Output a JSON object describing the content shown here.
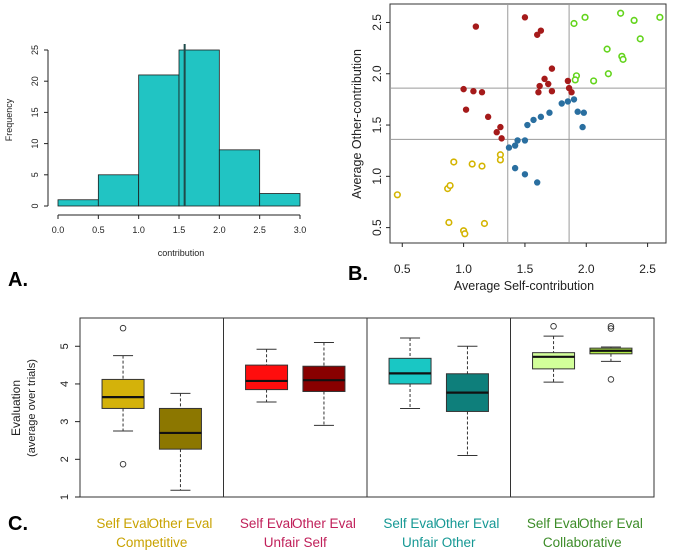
{
  "colors": {
    "hist_fill": "#21c4c3",
    "yellow": "#d4b400",
    "red": "#a51a1a",
    "blue": "#2a6fa0",
    "green": "#63d41c",
    "competitive": "#c8a200",
    "unfair_self": "#c0205a",
    "unfair_other": "#159894",
    "collaborative": "#3c8c28"
  },
  "chart_data": [
    {
      "id": "A",
      "panel_label": "A.",
      "type": "bar",
      "title": "",
      "xlabel": "contribution",
      "ylabel": "Frequency",
      "bins": [
        [
          0.0,
          0.5
        ],
        [
          0.5,
          1.0
        ],
        [
          1.0,
          1.5
        ],
        [
          1.5,
          2.0
        ],
        [
          2.0,
          2.5
        ],
        [
          2.5,
          3.0
        ]
      ],
      "values": [
        1,
        5,
        21,
        25,
        9,
        2
      ],
      "vline": 1.57,
      "xlim": [
        0,
        3
      ],
      "ylim": [
        0,
        25
      ],
      "xticks": [
        "0.0",
        "0.5",
        "1.0",
        "1.5",
        "2.0",
        "2.5",
        "3.0"
      ],
      "yticks": [
        "0",
        "5",
        "10",
        "15",
        "20",
        "25"
      ]
    },
    {
      "id": "B",
      "panel_label": "B.",
      "type": "scatter",
      "xlabel": "Average Self-contribution",
      "ylabel": "Average Other-contribution",
      "xlim": [
        0.4,
        2.65
      ],
      "ylim": [
        0.35,
        2.68
      ],
      "xticks": [
        "0.5",
        "1.0",
        "1.5",
        "2.0",
        "2.5"
      ],
      "yticks": [
        "0.5",
        "1.0",
        "1.5",
        "2.0",
        "2.5"
      ],
      "vlines": [
        1.36,
        1.86
      ],
      "hlines": [
        1.36,
        1.86
      ],
      "series": [
        {
          "name": "Competitive",
          "color_key": "yellow",
          "points": [
            [
              0.46,
              0.82
            ],
            [
              0.87,
              0.88
            ],
            [
              0.89,
              0.91
            ],
            [
              0.92,
              1.14
            ],
            [
              0.88,
              0.55
            ],
            [
              1.0,
              0.47
            ],
            [
              1.01,
              0.44
            ],
            [
              1.07,
              1.12
            ],
            [
              1.15,
              1.1
            ],
            [
              1.17,
              0.54
            ],
            [
              1.3,
              1.21
            ],
            [
              1.3,
              1.16
            ]
          ]
        },
        {
          "name": "Unfair Self",
          "color_key": "red",
          "points": [
            [
              1.1,
              2.46
            ],
            [
              1.0,
              1.85
            ],
            [
              1.08,
              1.83
            ],
            [
              1.15,
              1.82
            ],
            [
              1.02,
              1.65
            ],
            [
              1.2,
              1.58
            ],
            [
              1.27,
              1.43
            ],
            [
              1.3,
              1.48
            ],
            [
              1.31,
              1.37
            ],
            [
              1.5,
              2.55
            ],
            [
              1.6,
              2.38
            ],
            [
              1.63,
              2.42
            ],
            [
              1.72,
              2.05
            ],
            [
              1.66,
              1.95
            ],
            [
              1.62,
              1.88
            ],
            [
              1.69,
              1.9
            ],
            [
              1.61,
              1.82
            ],
            [
              1.72,
              1.83
            ],
            [
              1.85,
              1.93
            ],
            [
              1.86,
              1.86
            ],
            [
              1.88,
              1.82
            ]
          ]
        },
        {
          "name": "Unfair Other",
          "color_key": "blue",
          "points": [
            [
              1.37,
              1.28
            ],
            [
              1.42,
              1.3
            ],
            [
              1.44,
              1.35
            ],
            [
              1.5,
              1.35
            ],
            [
              1.42,
              1.08
            ],
            [
              1.5,
              1.02
            ],
            [
              1.6,
              0.94
            ],
            [
              1.52,
              1.5
            ],
            [
              1.57,
              1.55
            ],
            [
              1.63,
              1.58
            ],
            [
              1.7,
              1.62
            ],
            [
              1.8,
              1.71
            ],
            [
              1.85,
              1.73
            ],
            [
              1.9,
              1.75
            ],
            [
              1.93,
              1.63
            ],
            [
              1.98,
              1.62
            ],
            [
              1.97,
              1.48
            ]
          ]
        },
        {
          "name": "Collaborative",
          "color_key": "green",
          "points": [
            [
              1.9,
              2.49
            ],
            [
              1.99,
              2.55
            ],
            [
              2.28,
              2.59
            ],
            [
              2.39,
              2.52
            ],
            [
              2.6,
              2.55
            ],
            [
              2.17,
              2.24
            ],
            [
              2.29,
              2.17
            ],
            [
              2.3,
              2.14
            ],
            [
              2.44,
              2.34
            ],
            [
              1.92,
              1.98
            ],
            [
              1.91,
              1.94
            ],
            [
              2.06,
              1.93
            ],
            [
              2.18,
              2.0
            ]
          ]
        }
      ]
    },
    {
      "id": "C",
      "panel_label": "C.",
      "type": "boxplot",
      "ylabel_line1": "Evaluation",
      "ylabel_line2": "(average over trials)",
      "ylim": [
        1,
        5.75
      ],
      "yticks": [
        "1",
        "2",
        "3",
        "4",
        "5"
      ],
      "groups": [
        {
          "name": "Competitive",
          "color_key": "competitive",
          "boxes": [
            {
              "label": "Self Eval",
              "fill": "#d4b20a",
              "min": 2.75,
              "q1": 3.35,
              "median": 3.65,
              "q3": 4.12,
              "max": 4.75,
              "outliers": [
                5.48,
                1.87
              ]
            },
            {
              "label": "Other Eval",
              "fill": "#8c7700",
              "min": 1.18,
              "q1": 2.27,
              "median": 2.7,
              "q3": 3.35,
              "max": 3.75,
              "outliers": []
            }
          ]
        },
        {
          "name": "Unfair Self",
          "color_key": "unfair_self",
          "boxes": [
            {
              "label": "Self Eval",
              "fill": "#ff0d0d",
              "min": 3.52,
              "q1": 3.85,
              "median": 4.08,
              "q3": 4.5,
              "max": 4.92,
              "outliers": []
            },
            {
              "label": "Other Eval",
              "fill": "#880000",
              "min": 2.9,
              "q1": 3.8,
              "median": 4.1,
              "q3": 4.47,
              "max": 5.1,
              "outliers": []
            }
          ]
        },
        {
          "name": "Unfair Other",
          "color_key": "unfair_other",
          "boxes": [
            {
              "label": "Self Eval",
              "fill": "#19c7c4",
              "min": 3.35,
              "q1": 4.0,
              "median": 4.28,
              "q3": 4.68,
              "max": 5.22,
              "outliers": []
            },
            {
              "label": "Other Eval",
              "fill": "#0e7f7b",
              "min": 2.1,
              "q1": 3.27,
              "median": 3.77,
              "q3": 4.27,
              "max": 5.0,
              "outliers": []
            }
          ]
        },
        {
          "name": "Collaborative",
          "color_key": "collaborative",
          "boxes": [
            {
              "label": "Self Eval",
              "fill": "#d2ff9a",
              "min": 4.05,
              "q1": 4.4,
              "median": 4.72,
              "q3": 4.83,
              "max": 5.27,
              "outliers": [
                5.53
              ]
            },
            {
              "label": "Other Eval",
              "fill": "#b2ea48",
              "min": 4.6,
              "q1": 4.8,
              "median": 4.88,
              "q3": 4.95,
              "max": 4.98,
              "outliers": [
                5.53,
                5.47,
                4.12
              ]
            }
          ]
        }
      ]
    }
  ]
}
